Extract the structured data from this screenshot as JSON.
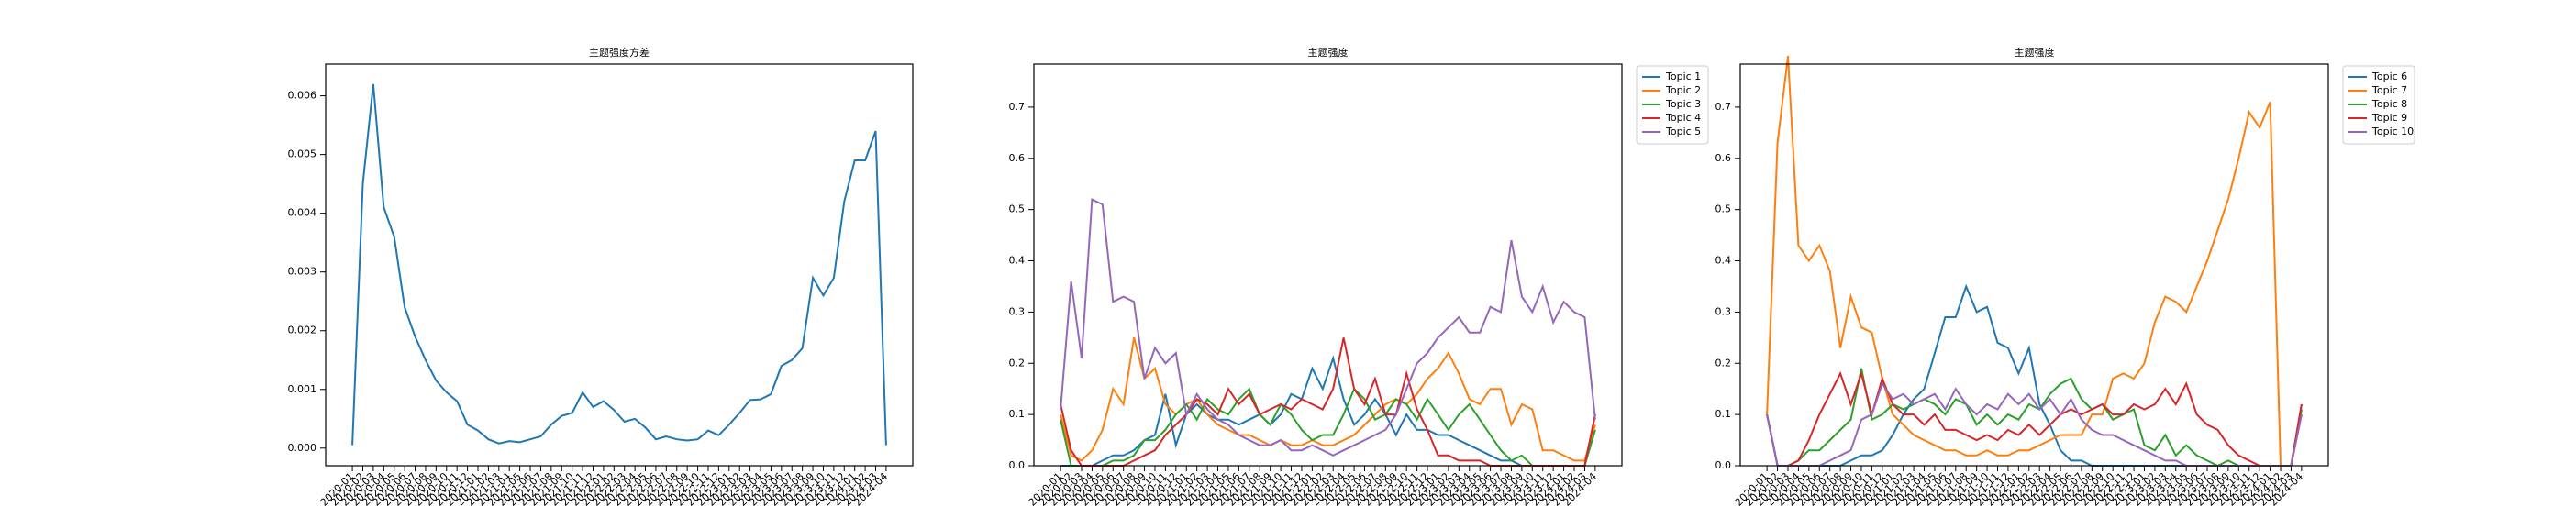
{
  "chart_data": [
    {
      "type": "line",
      "title": "主题强度方差",
      "categories": [
        "2020-01",
        "2020-02",
        "2020-03",
        "2020-04",
        "2020-05",
        "2020-06",
        "2020-07",
        "2020-08",
        "2020-09",
        "2020-10",
        "2020-11",
        "2020-12",
        "2021-01",
        "2021-02",
        "2021-03",
        "2021-04",
        "2021-05",
        "2021-06",
        "2021-07",
        "2021-08",
        "2021-09",
        "2021-10",
        "2021-11",
        "2021-12",
        "2022-01",
        "2022-02",
        "2022-03",
        "2022-04",
        "2022-05",
        "2022-06",
        "2022-07",
        "2022-08",
        "2022-09",
        "2022-10",
        "2022-11",
        "2022-12",
        "2023-01",
        "2023-02",
        "2023-03",
        "2023-04",
        "2023-05",
        "2023-06",
        "2023-07",
        "2023-08",
        "2023-09",
        "2023-10",
        "2023-11",
        "2023-12",
        "2024-01",
        "2024-02",
        "2024-03",
        "2024-04"
      ],
      "values": [
        5e-05,
        0.0045,
        0.0062,
        0.0041,
        0.0036,
        0.0024,
        0.0019,
        0.0015,
        0.00115,
        0.00095,
        0.0008,
        0.0004,
        0.0003,
        0.00015,
        8e-05,
        0.00012,
        0.0001,
        0.00015,
        0.0002,
        0.0004,
        0.00055,
        0.0006,
        0.00095,
        0.0007,
        0.0008,
        0.00065,
        0.00045,
        0.0005,
        0.00035,
        0.00015,
        0.0002,
        0.00015,
        0.00013,
        0.00015,
        0.0003,
        0.00022,
        0.0004,
        0.0006,
        0.00082,
        0.00083,
        0.00092,
        0.0014,
        0.0015,
        0.0017,
        0.0029,
        0.0026,
        0.0029,
        0.0042,
        0.0049,
        0.0049,
        0.0054,
        5e-05
      ],
      "color": "#1f77b4",
      "ylim": [
        -0.0003,
        0.00654
      ],
      "yticks": [
        {
          "value": 0,
          "label": "0.000"
        },
        {
          "value": 0.001,
          "label": "0.001"
        },
        {
          "value": 0.002,
          "label": "0.002"
        },
        {
          "value": 0.003,
          "label": "0.003"
        },
        {
          "value": 0.004,
          "label": "0.004"
        },
        {
          "value": 0.005,
          "label": "0.005"
        },
        {
          "value": 0.006,
          "label": "0.006"
        }
      ],
      "grid": false
    },
    {
      "type": "line",
      "title": "主题强度",
      "categories": [
        "2020-01",
        "2020-02",
        "2020-03",
        "2020-04",
        "2020-05",
        "2020-06",
        "2020-07",
        "2020-08",
        "2020-09",
        "2020-10",
        "2020-11",
        "2020-12",
        "2021-01",
        "2021-02",
        "2021-03",
        "2021-04",
        "2021-05",
        "2021-06",
        "2021-07",
        "2021-08",
        "2021-09",
        "2021-10",
        "2021-11",
        "2021-12",
        "2022-01",
        "2022-02",
        "2022-03",
        "2022-04",
        "2022-05",
        "2022-06",
        "2022-07",
        "2022-08",
        "2022-09",
        "2022-10",
        "2022-11",
        "2022-12",
        "2023-01",
        "2023-02",
        "2023-03",
        "2023-04",
        "2023-05",
        "2023-06",
        "2023-07",
        "2023-08",
        "2023-09",
        "2023-10",
        "2023-11",
        "2023-12",
        "2024-01",
        "2024-02",
        "2024-03",
        "2024-04"
      ],
      "series": [
        {
          "name": "Topic 1",
          "color": "#1f77b4",
          "values": [
            0,
            0,
            0,
            0,
            0.01,
            0.02,
            0.02,
            0.03,
            0.05,
            0.06,
            0.14,
            0.04,
            0.1,
            0.12,
            0.1,
            0.09,
            0.09,
            0.08,
            0.09,
            0.1,
            0.08,
            0.1,
            0.14,
            0.13,
            0.19,
            0.15,
            0.21,
            0.13,
            0.08,
            0.1,
            0.13,
            0.1,
            0.06,
            0.1,
            0.07,
            0.07,
            0.06,
            0.06,
            0.05,
            0.04,
            0.03,
            0.02,
            0.01,
            0.01,
            0,
            0,
            0,
            0,
            0,
            0,
            0,
            0.1
          ]
        },
        {
          "name": "Topic 2",
          "color": "#ff7f0e",
          "values": [
            0.1,
            0.02,
            0.01,
            0.03,
            0.07,
            0.15,
            0.12,
            0.25,
            0.17,
            0.19,
            0.12,
            0.1,
            0.12,
            0.13,
            0.1,
            0.08,
            0.07,
            0.06,
            0.06,
            0.05,
            0.04,
            0.05,
            0.04,
            0.04,
            0.05,
            0.04,
            0.04,
            0.05,
            0.06,
            0.08,
            0.1,
            0.12,
            0.13,
            0.12,
            0.14,
            0.17,
            0.19,
            0.22,
            0.18,
            0.13,
            0.12,
            0.15,
            0.15,
            0.08,
            0.12,
            0.11,
            0.03,
            0.03,
            0.02,
            0.01,
            0.01,
            0.08
          ]
        },
        {
          "name": "Topic 3",
          "color": "#2ca02c",
          "values": [
            0.09,
            0,
            0,
            0,
            0,
            0.01,
            0.01,
            0.02,
            0.05,
            0.05,
            0.07,
            0.1,
            0.12,
            0.09,
            0.13,
            0.11,
            0.1,
            0.13,
            0.15,
            0.1,
            0.08,
            0.12,
            0.1,
            0.07,
            0.05,
            0.06,
            0.06,
            0.1,
            0.15,
            0.13,
            0.09,
            0.1,
            0.13,
            0.12,
            0.09,
            0.13,
            0.1,
            0.07,
            0.1,
            0.12,
            0.09,
            0.06,
            0.03,
            0.01,
            0.02,
            0,
            0,
            0,
            0,
            0,
            0,
            0.07
          ]
        },
        {
          "name": "Topic 4",
          "color": "#d62728",
          "values": [
            0.12,
            0.03,
            0,
            0,
            0,
            0,
            0,
            0.01,
            0.02,
            0.03,
            0.06,
            0.08,
            0.1,
            0.13,
            0.12,
            0.1,
            0.15,
            0.12,
            0.14,
            0.1,
            0.11,
            0.12,
            0.11,
            0.13,
            0.12,
            0.11,
            0.15,
            0.25,
            0.15,
            0.12,
            0.17,
            0.1,
            0.1,
            0.18,
            0.11,
            0.07,
            0.02,
            0.02,
            0.01,
            0.01,
            0.01,
            0,
            0,
            0,
            0,
            0,
            0,
            0,
            0,
            0,
            0,
            0.1
          ]
        },
        {
          "name": "Topic 5",
          "color": "#9467bd",
          "values": [
            0.11,
            0.36,
            0.21,
            0.52,
            0.51,
            0.32,
            0.33,
            0.32,
            0.17,
            0.23,
            0.2,
            0.22,
            0.1,
            0.14,
            0.11,
            0.09,
            0.08,
            0.06,
            0.05,
            0.04,
            0.04,
            0.05,
            0.03,
            0.03,
            0.04,
            0.03,
            0.02,
            0.03,
            0.04,
            0.05,
            0.06,
            0.07,
            0.1,
            0.15,
            0.2,
            0.22,
            0.25,
            0.27,
            0.29,
            0.26,
            0.26,
            0.31,
            0.3,
            0.44,
            0.33,
            0.3,
            0.35,
            0.28,
            0.32,
            0.3,
            0.29,
            0.09
          ]
        }
      ],
      "ylim": [
        0,
        0.784
      ],
      "yticks": [
        {
          "value": 0,
          "label": "0.0"
        },
        0.1,
        0.2,
        0.3,
        0.4,
        0.5,
        0.6,
        0.7
      ],
      "grid": false,
      "legend": "outside upper right"
    },
    {
      "type": "line",
      "title": "主题强度",
      "categories": [
        "2020-01",
        "2020-02",
        "2020-03",
        "2020-04",
        "2020-05",
        "2020-06",
        "2020-07",
        "2020-08",
        "2020-09",
        "2020-10",
        "2020-11",
        "2020-12",
        "2021-01",
        "2021-02",
        "2021-03",
        "2021-04",
        "2021-05",
        "2021-06",
        "2021-07",
        "2021-08",
        "2021-09",
        "2021-10",
        "2021-11",
        "2021-12",
        "2022-01",
        "2022-02",
        "2022-03",
        "2022-04",
        "2022-05",
        "2022-06",
        "2022-07",
        "2022-08",
        "2022-09",
        "2022-10",
        "2022-11",
        "2022-12",
        "2023-01",
        "2023-02",
        "2023-03",
        "2023-04",
        "2023-05",
        "2023-06",
        "2023-07",
        "2023-08",
        "2023-09",
        "2023-10",
        "2023-11",
        "2023-12",
        "2024-01",
        "2024-02",
        "2024-03",
        "2024-04"
      ],
      "series": [
        {
          "name": "Topic 6",
          "color": "#1f77b4",
          "values": [
            0.1,
            0,
            0,
            0,
            0,
            0,
            0,
            0,
            0.01,
            0.02,
            0.02,
            0.03,
            0.06,
            0.1,
            0.13,
            0.15,
            0.22,
            0.29,
            0.29,
            0.35,
            0.3,
            0.31,
            0.24,
            0.23,
            0.18,
            0.23,
            0.12,
            0.08,
            0.03,
            0.01,
            0.01,
            0,
            0,
            0,
            0,
            0,
            0,
            0,
            0,
            0,
            0,
            0,
            0,
            0,
            0,
            0,
            0,
            0,
            0,
            0,
            0,
            0.12
          ]
        },
        {
          "name": "Topic 7",
          "color": "#ff7f0e",
          "values": [
            0.1,
            0.63,
            0.8,
            0.43,
            0.4,
            0.43,
            0.38,
            0.23,
            0.33,
            0.27,
            0.26,
            0.17,
            0.1,
            0.08,
            0.06,
            0.05,
            0.04,
            0.03,
            0.03,
            0.02,
            0.02,
            0.03,
            0.02,
            0.02,
            0.03,
            0.03,
            0.04,
            0.05,
            0.06,
            0.06,
            0.06,
            0.1,
            0.1,
            0.17,
            0.18,
            0.17,
            0.2,
            0.28,
            0.33,
            0.32,
            0.3,
            0.35,
            0.4,
            0.46,
            0.52,
            0.6,
            0.69,
            0.66,
            0.71,
            0,
            0,
            0.1
          ]
        },
        {
          "name": "Topic 8",
          "color": "#2ca02c",
          "values": [
            0.1,
            0,
            0,
            0.01,
            0.03,
            0.03,
            0.05,
            0.07,
            0.09,
            0.19,
            0.09,
            0.1,
            0.12,
            0.11,
            0.12,
            0.13,
            0.12,
            0.1,
            0.13,
            0.12,
            0.08,
            0.1,
            0.08,
            0.1,
            0.09,
            0.12,
            0.11,
            0.14,
            0.16,
            0.17,
            0.13,
            0.11,
            0.12,
            0.09,
            0.1,
            0.11,
            0.04,
            0.03,
            0.06,
            0.02,
            0.04,
            0.02,
            0.01,
            0,
            0.01,
            0,
            0,
            0,
            0,
            0,
            0,
            0.11
          ]
        },
        {
          "name": "Topic 9",
          "color": "#d62728",
          "values": [
            0.1,
            0,
            0,
            0.01,
            0.05,
            0.1,
            0.14,
            0.18,
            0.12,
            0.18,
            0.1,
            0.17,
            0.12,
            0.1,
            0.1,
            0.08,
            0.1,
            0.07,
            0.07,
            0.06,
            0.05,
            0.06,
            0.05,
            0.07,
            0.06,
            0.08,
            0.06,
            0.08,
            0.1,
            0.11,
            0.1,
            0.11,
            0.12,
            0.1,
            0.1,
            0.12,
            0.11,
            0.12,
            0.15,
            0.12,
            0.16,
            0.1,
            0.08,
            0.07,
            0.04,
            0.02,
            0.01,
            0,
            0,
            0,
            0,
            0.12
          ]
        },
        {
          "name": "Topic 10",
          "color": "#9467bd",
          "values": [
            0.1,
            0,
            0,
            0,
            0,
            0,
            0.01,
            0.02,
            0.03,
            0.09,
            0.1,
            0.16,
            0.13,
            0.14,
            0.12,
            0.13,
            0.14,
            0.11,
            0.15,
            0.12,
            0.1,
            0.12,
            0.11,
            0.14,
            0.12,
            0.14,
            0.11,
            0.13,
            0.1,
            0.13,
            0.09,
            0.07,
            0.06,
            0.06,
            0.05,
            0.04,
            0.03,
            0.02,
            0.01,
            0.01,
            0,
            0,
            0,
            0,
            0,
            0,
            0,
            0,
            0,
            0,
            0,
            0.1
          ]
        }
      ],
      "ylim": [
        0,
        0.784
      ],
      "yticks": [
        {
          "value": 0,
          "label": "0.0"
        },
        0.1,
        0.2,
        0.3,
        0.4,
        0.5,
        0.6,
        0.7
      ],
      "grid": false,
      "legend": "outside upper right"
    }
  ]
}
